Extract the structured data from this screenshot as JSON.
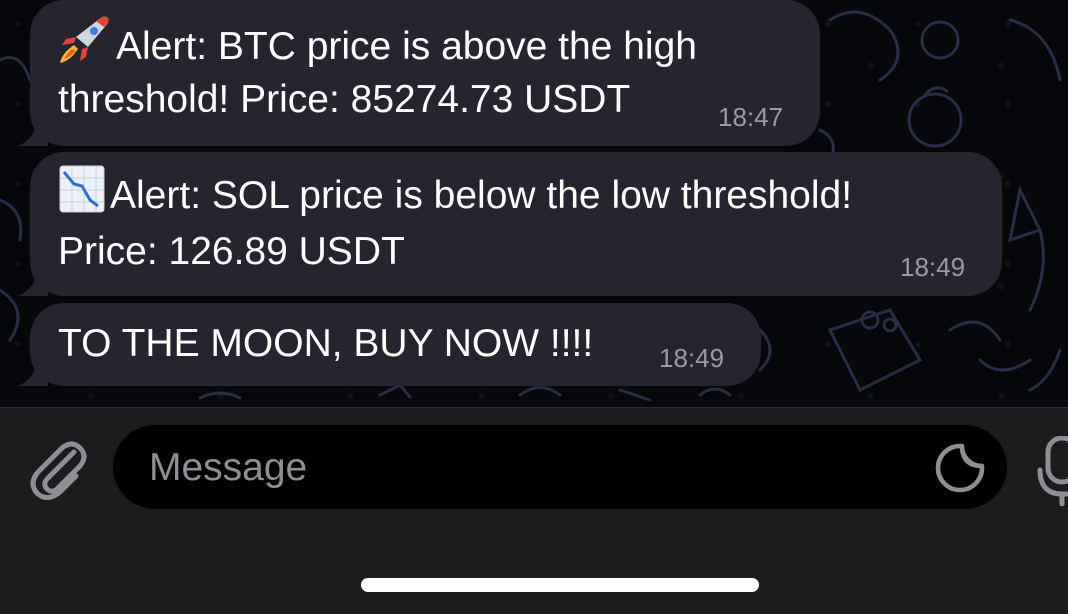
{
  "messages": [
    {
      "emoji_icon": "rocket-icon",
      "line1": "Alert: BTC price is above the high",
      "line2": "threshold! Price: 85274.73 USDT",
      "time": "18:47"
    },
    {
      "emoji_icon": "chart-decreasing-icon",
      "line1": "Alert: SOL price is below the low threshold!",
      "line2": "Price: 126.89 USDT",
      "time": "18:49"
    },
    {
      "text": "TO THE MOON, BUY NOW !!!!",
      "time": "18:49"
    }
  ],
  "composer": {
    "placeholder": "Message",
    "attach_icon": "paperclip-icon",
    "sticker_icon": "sticker-icon",
    "mic_icon": "microphone-icon"
  },
  "colors": {
    "bubble": "#25242f",
    "background": "#06070a",
    "composer_bar": "#1c1c1e",
    "timestamp": "#9a9aa6"
  }
}
